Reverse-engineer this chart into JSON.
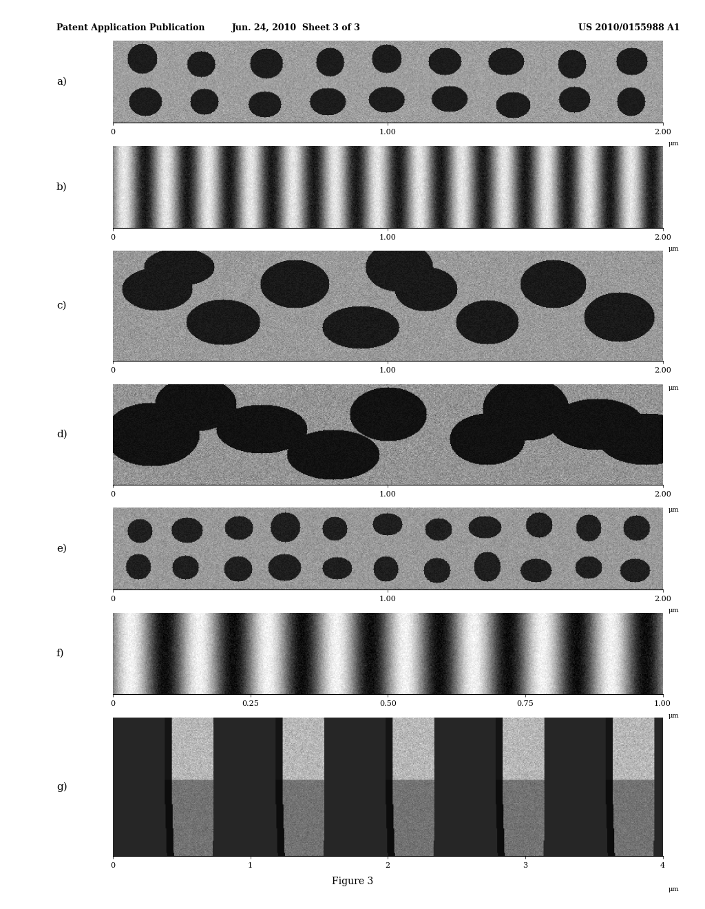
{
  "header_left": "Patent Application Publication",
  "header_mid": "Jun. 24, 2010  Sheet 3 of 3",
  "header_right": "US 2010/0155988 A1",
  "figure_label": "Figure 3",
  "panels": [
    "a)",
    "b)",
    "c)",
    "d)",
    "e)",
    "f)",
    "g)"
  ],
  "panel_axes": [
    {
      "ticks": [
        0,
        1.0,
        2.0
      ],
      "unit": "μm",
      "xmax": 2.0
    },
    {
      "ticks": [
        0,
        1.0,
        2.0
      ],
      "unit": "μm",
      "xmax": 2.0
    },
    {
      "ticks": [
        0,
        1.0,
        2.0
      ],
      "unit": "μm",
      "xmax": 2.0
    },
    {
      "ticks": [
        0,
        1.0,
        2.0
      ],
      "unit": "μm",
      "xmax": 2.0
    },
    {
      "ticks": [
        0,
        1.0,
        2.0
      ],
      "unit": "μm",
      "xmax": 2.0
    },
    {
      "ticks": [
        0,
        0.25,
        0.5,
        0.75,
        1.0
      ],
      "unit": "μm",
      "xmax": 1.0
    },
    {
      "ticks": [
        0,
        1,
        2,
        3,
        4
      ],
      "unit": "μm",
      "xmax": 4.0
    }
  ],
  "background_color": "#ffffff",
  "image_bg": "#888888"
}
